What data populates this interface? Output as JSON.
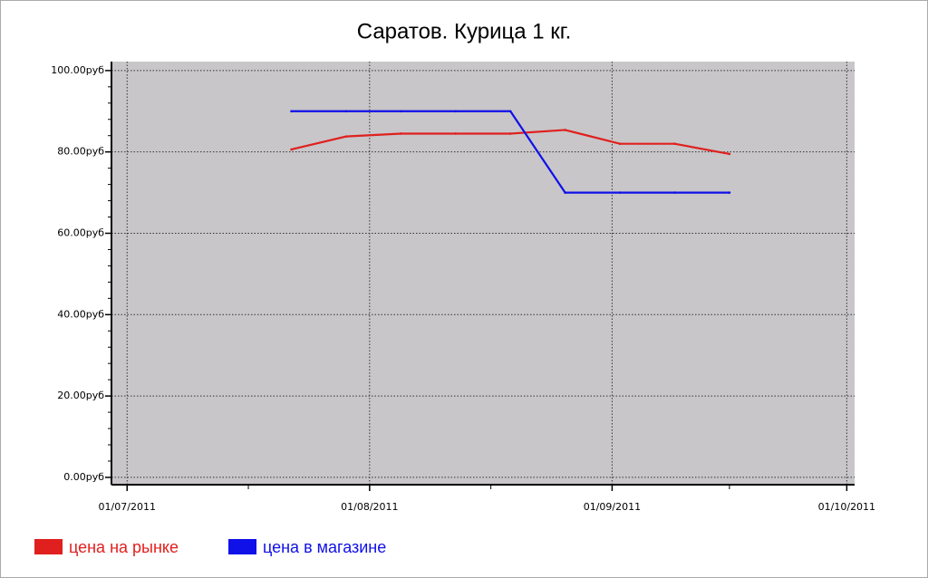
{
  "chart_data": {
    "type": "line",
    "title": "Саратов. Курица 1 кг.",
    "x": [
      "2011-07-22",
      "2011-07-29",
      "2011-08-05",
      "2011-08-12",
      "2011-08-19",
      "2011-08-26",
      "2011-09-02",
      "2011-09-09",
      "2011-09-16"
    ],
    "series": [
      {
        "name": "цена на рынке",
        "color": "#e0201e",
        "values": [
          80.6,
          83.8,
          84.5,
          84.5,
          84.5,
          85.4,
          82,
          82,
          79.5
        ]
      },
      {
        "name": "цена в магазине",
        "color": "#1010e8",
        "values": [
          90,
          90,
          90,
          90,
          90,
          70,
          70,
          70,
          70
        ]
      }
    ],
    "xlim": [
      "2011-06-29",
      "2011-10-02"
    ],
    "xticks": [
      {
        "value": "2011-07-01",
        "label": "01/07/2011"
      },
      {
        "value": "2011-08-01",
        "label": "01/08/2011"
      },
      {
        "value": "2011-09-01",
        "label": "01/09/2011"
      },
      {
        "value": "2011-10-01",
        "label": "01/10/2011"
      }
    ],
    "ylim": [
      -1.8,
      102.2
    ],
    "yticks": [
      {
        "value": 0,
        "label": "0.00руб"
      },
      {
        "value": 20,
        "label": "20.00руб"
      },
      {
        "value": 40,
        "label": "40.00руб"
      },
      {
        "value": 60,
        "label": "60.00руб"
      },
      {
        "value": 80,
        "label": "80.00руб"
      },
      {
        "value": 100,
        "label": "100.00руб"
      }
    ],
    "grid": true,
    "legend": "bottom-left",
    "plot_background": "#c8c6c9"
  }
}
